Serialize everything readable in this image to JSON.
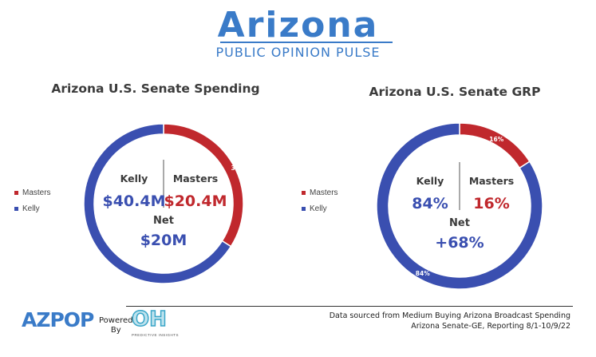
{
  "header": {
    "title": "Arizona",
    "subtitle": "PUBLIC OPINION PULSE"
  },
  "colors": {
    "brand": "#3a7bc8",
    "kelly": "#3a4fb0",
    "masters": "#c0282d"
  },
  "chart_data": [
    {
      "type": "pie",
      "title": "Arizona U.S. Senate Spending",
      "donut": true,
      "categories": [
        "Masters",
        "Kelly"
      ],
      "values": [
        34,
        66
      ],
      "slice_labels": [
        "34%",
        "66%"
      ],
      "legend": {
        "entries": [
          "Masters",
          "Kelly"
        ],
        "placement": "left"
      },
      "center": {
        "left_name": "Kelly",
        "left_value": "$40.4M",
        "right_name": "Masters",
        "right_value": "$20.4M",
        "net_label": "Net",
        "net_value": "$20M"
      }
    },
    {
      "type": "pie",
      "title": "Arizona U.S. Senate GRP",
      "donut": true,
      "categories": [
        "Masters",
        "Kelly"
      ],
      "values": [
        16,
        84
      ],
      "slice_labels": [
        "16%",
        "84%"
      ],
      "legend": {
        "entries": [
          "Masters",
          "Kelly"
        ],
        "placement": "left"
      },
      "center": {
        "left_name": "Kelly",
        "left_value": "84%",
        "right_name": "Masters",
        "right_value": "16%",
        "net_label": "Net",
        "net_value": "+68%"
      }
    }
  ],
  "footer": {
    "logo_text": "AZPOP",
    "powered_line1": "Powered",
    "powered_line2": "By",
    "oh_logo": "OH",
    "oh_caption": "PREDICTIVE INSIGHTS",
    "source_line1": "Data sourced from Medium Buying Arizona Broadcast Spending",
    "source_line2": "Arizona Senate-GE, Reporting 8/1-10/9/22"
  }
}
